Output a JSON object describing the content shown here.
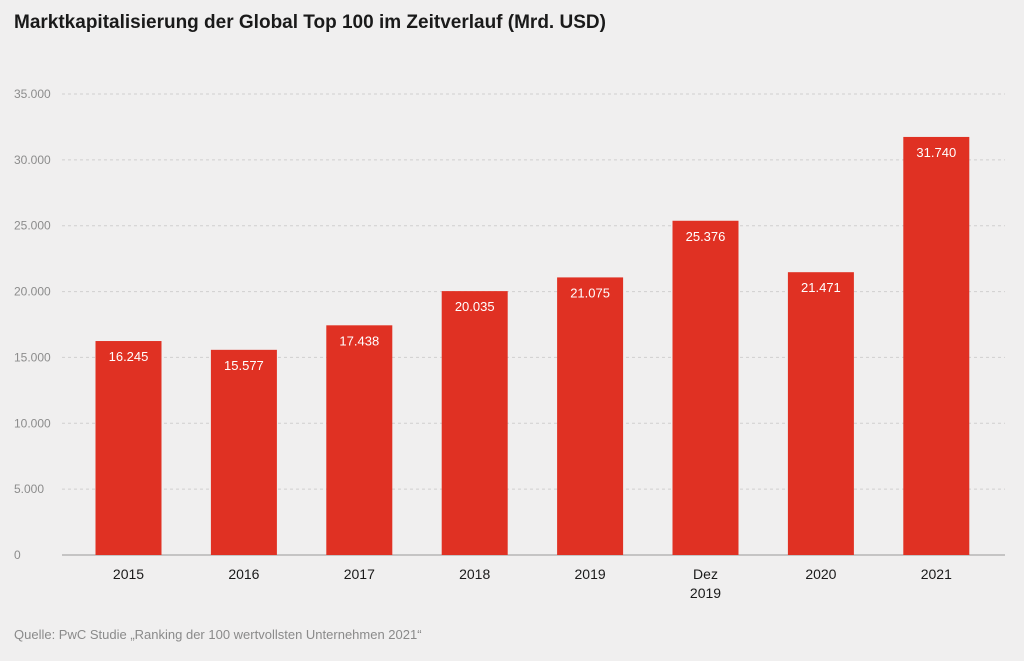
{
  "title": "Marktkapitalisierung der Global Top 100 im Zeitverlauf (Mrd. USD)",
  "source": "Quelle: PwC Studie „Ranking der 100 wertvollsten Unternehmen 2021“",
  "colors": {
    "bar": "#e03123",
    "grid": "#cfcfcf",
    "background": "#f0efef"
  },
  "chart_data": {
    "type": "bar",
    "categories": [
      "2015",
      "2016",
      "2017",
      "2018",
      "2019",
      "Dez 2019",
      "2020",
      "2021"
    ],
    "values": [
      16245,
      15577,
      17438,
      20035,
      21075,
      25376,
      21471,
      31740
    ],
    "value_labels": [
      "16.245",
      "15.577",
      "17.438",
      "20.035",
      "21.075",
      "25.376",
      "21.471",
      "31.740"
    ],
    "y_ticks": [
      0,
      5000,
      10000,
      15000,
      20000,
      25000,
      30000,
      35000
    ],
    "y_tick_labels": [
      "0",
      "5.000",
      "10.000",
      "15.000",
      "20.000",
      "25.000",
      "30.000",
      "35.000"
    ],
    "ylim": [
      0,
      35000
    ],
    "grid": true,
    "legend": "none"
  }
}
